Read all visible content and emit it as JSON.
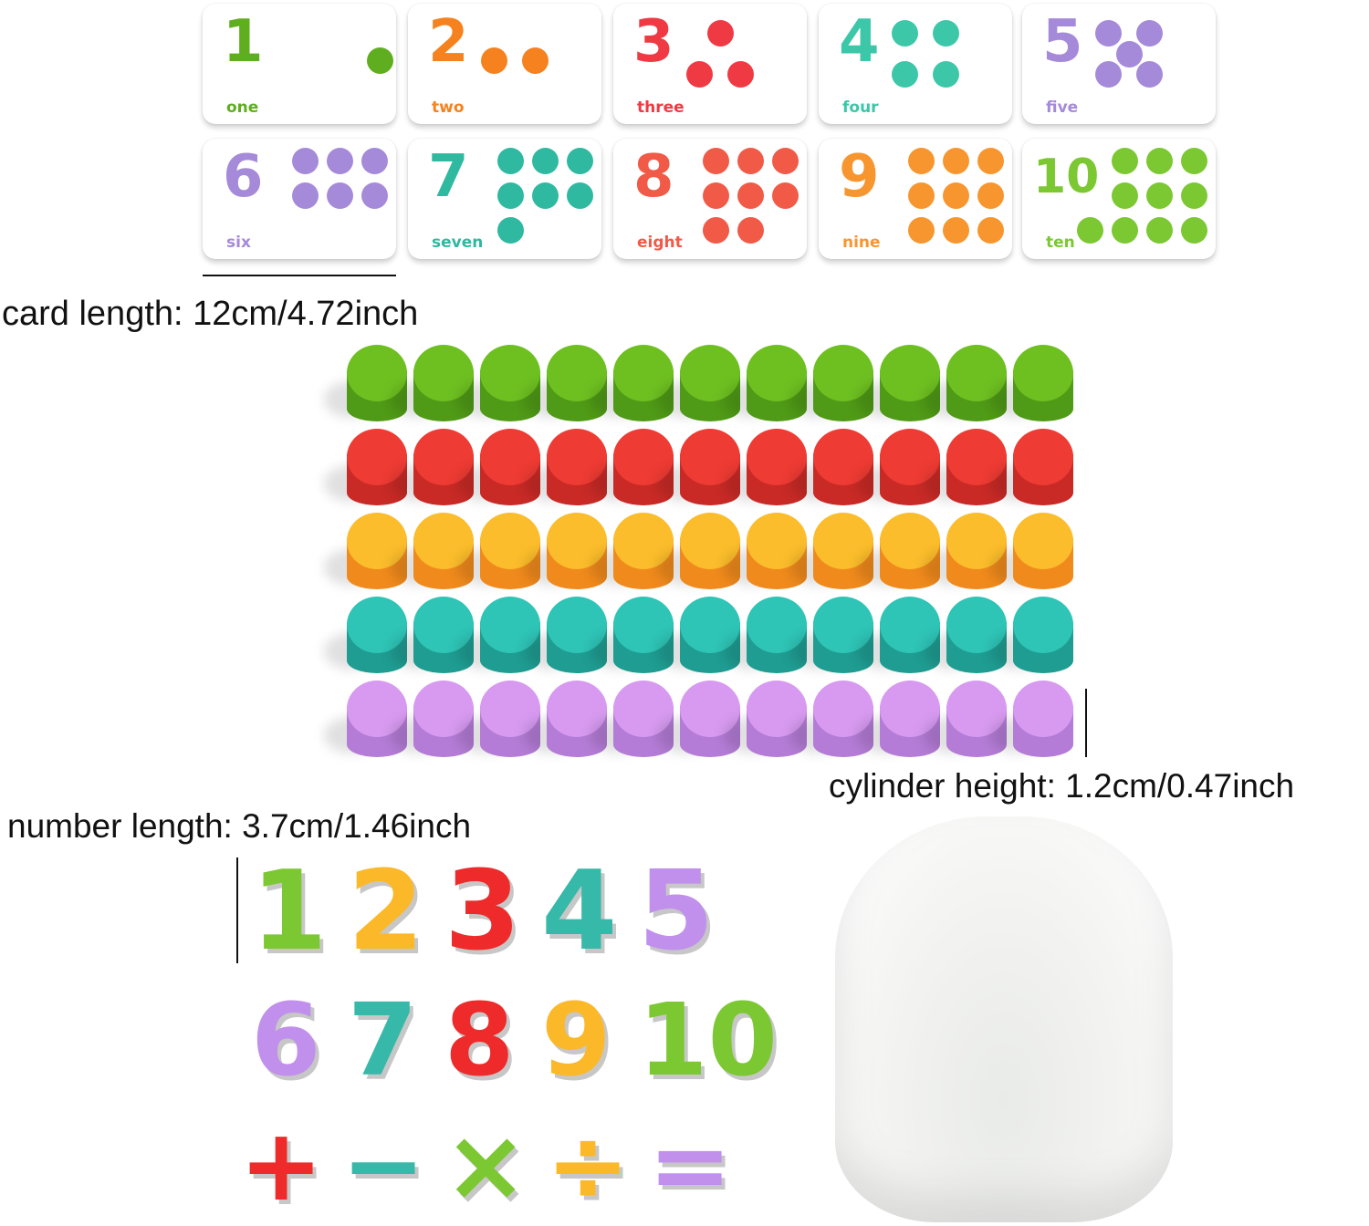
{
  "cards": [
    {
      "number": "1",
      "word": "one",
      "color": "#5fae1f",
      "dots": 1
    },
    {
      "number": "2",
      "word": "two",
      "color": "#f5821f",
      "dots": 2
    },
    {
      "number": "3",
      "word": "three",
      "color": "#ef3a44",
      "dots": 3
    },
    {
      "number": "4",
      "word": "four",
      "color": "#3cc7a8",
      "dots": 4
    },
    {
      "number": "5",
      "word": "five",
      "color": "#a58ad9",
      "dots": 5
    },
    {
      "number": "6",
      "word": "six",
      "color": "#a58ad9",
      "dots": 6
    },
    {
      "number": "7",
      "word": "seven",
      "color": "#2fb9a0",
      "dots": 7
    },
    {
      "number": "8",
      "word": "eight",
      "color": "#f15a47",
      "dots": 8
    },
    {
      "number": "9",
      "word": "nine",
      "color": "#f7962f",
      "dots": 9
    },
    {
      "number": "10",
      "word": "ten",
      "color": "#7cc832",
      "dots": 10
    }
  ],
  "labels": {
    "card_length": "card length: 12cm/4.72inch",
    "cylinder_height": "cylinder height: 1.2cm/0.47inch",
    "number_length": "number length: 3.7cm/1.46inch"
  },
  "cylinders": {
    "per_row": 11,
    "rows": [
      {
        "color": "#6ec021",
        "side": "#4f9a16"
      },
      {
        "color": "#ee3b33",
        "side": "#c92a26"
      },
      {
        "color": "#fbbd2b",
        "side": "#f08a1c"
      },
      {
        "color": "#2ec4b6",
        "side": "#1f9d92"
      },
      {
        "color": "#d79af0",
        "side": "#b47cd6"
      }
    ]
  },
  "foam_numbers": {
    "row1": [
      {
        "t": "1",
        "c": "#7cc832"
      },
      {
        "t": "2",
        "c": "#fbb829"
      },
      {
        "t": "3",
        "c": "#ee2a2a"
      },
      {
        "t": "4",
        "c": "#36b9a9"
      },
      {
        "t": "5",
        "c": "#c090ec"
      }
    ],
    "row2": [
      {
        "t": "6",
        "c": "#c090ec"
      },
      {
        "t": "7",
        "c": "#36b9a9"
      },
      {
        "t": "8",
        "c": "#ee2a2a"
      },
      {
        "t": "9",
        "c": "#fbb829"
      },
      {
        "t": "10",
        "c": "#7cc832"
      }
    ],
    "operators": [
      {
        "t": "+",
        "c": "#ee2a2a"
      },
      {
        "t": "−",
        "c": "#36b9a9"
      },
      {
        "t": "×",
        "c": "#7cc832"
      },
      {
        "t": "÷",
        "c": "#fbb829"
      },
      {
        "t": "=",
        "c": "#c090ec"
      }
    ]
  }
}
